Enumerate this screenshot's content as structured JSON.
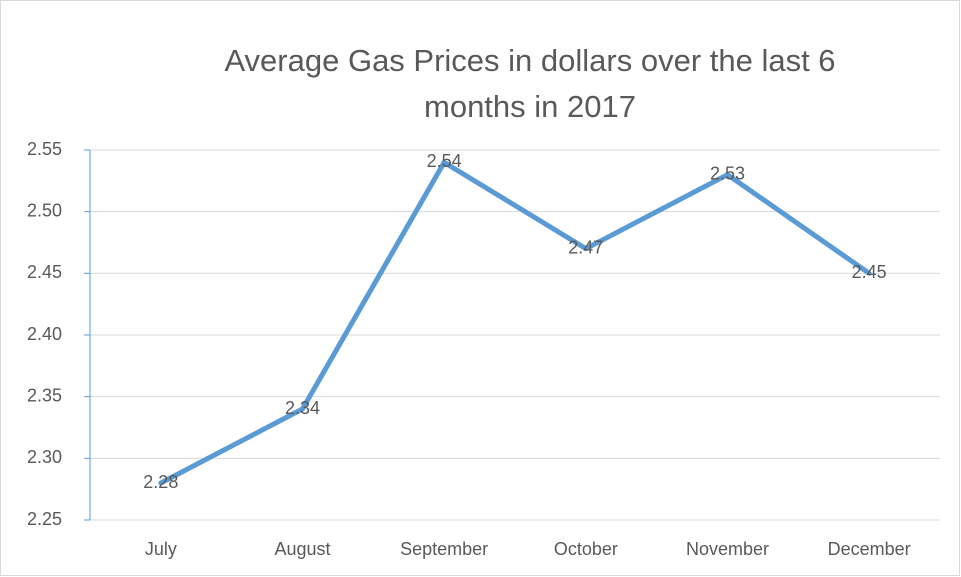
{
  "chart_data": {
    "type": "line",
    "title": "Average Gas Prices in dollars over the last 6 months in 2017",
    "categories": [
      "July",
      "August",
      "September",
      "October",
      "November",
      "December"
    ],
    "values": [
      2.28,
      2.34,
      2.54,
      2.47,
      2.53,
      2.45
    ],
    "color": "#5b9bd5",
    "ylim": [
      2.25,
      2.55
    ],
    "yticks": [
      2.25,
      {
        "value": 2.3,
        "label": "2.30"
      },
      2.35,
      {
        "value": 2.4,
        "label": "2.40"
      },
      2.45,
      {
        "value": 2.5,
        "label": "2.50"
      },
      2.55
    ],
    "grid": true
  }
}
